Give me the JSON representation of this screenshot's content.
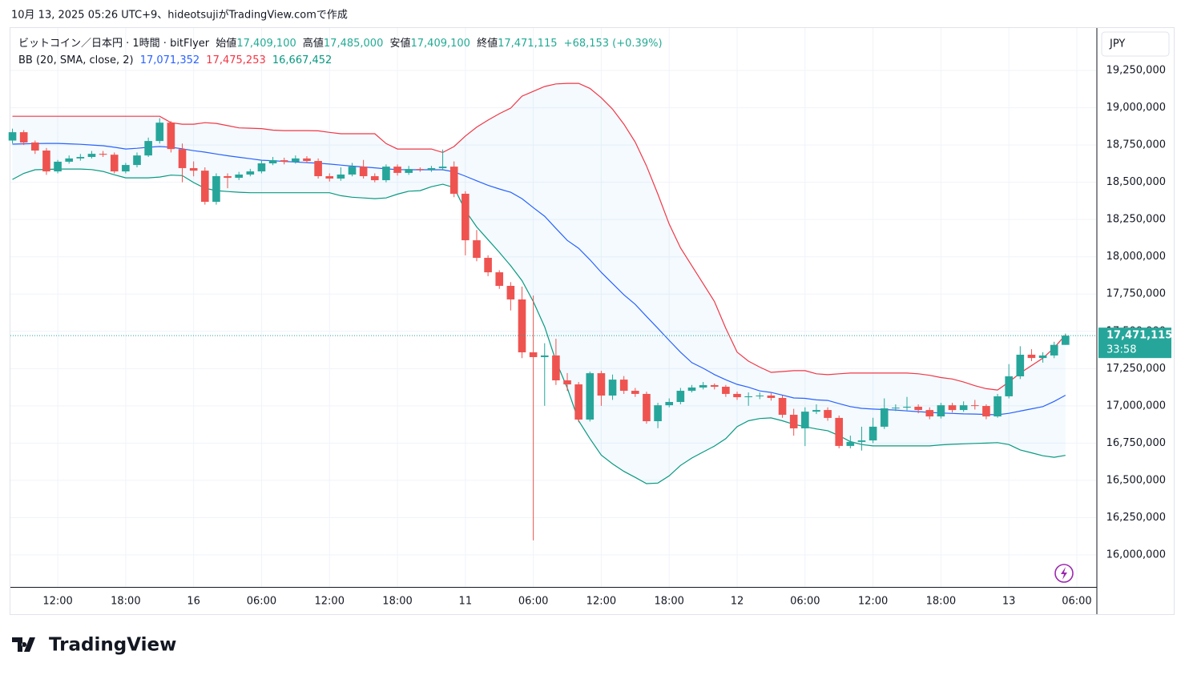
{
  "header": {
    "caption": "10月 13, 2025 05:26 UTC+9、hideotsujiがTradingView.comで作成",
    "brand": "TradingView",
    "currency": "JPY"
  },
  "legend": {
    "symbol": "ビットコイン／日本円 · 1時間 · bitFlyer",
    "open_label": "始値",
    "open": "17,409,100",
    "high_label": "高値",
    "high": "17,485,000",
    "low_label": "安値",
    "low": "17,409,100",
    "close_label": "終値",
    "close": "17,471,115",
    "change": "+68,153 (+0.39%)",
    "indicator": "BB (20, SMA, close, 2)",
    "basis": "17,071,352",
    "upper": "17,475,253",
    "lower": "16,667,452"
  },
  "chart_data": {
    "type": "candlestick",
    "up_color": "#26a69a",
    "down_color": "#ef5350",
    "band_fill": "#2196f3",
    "x": [
      0,
      1,
      2,
      3,
      4,
      5,
      6,
      7,
      8,
      9,
      10,
      11,
      12,
      13,
      14,
      15,
      16,
      17,
      18,
      19,
      20,
      21,
      22,
      23,
      24,
      25,
      26,
      27,
      28,
      29,
      30,
      31,
      32,
      33,
      34,
      35,
      36,
      37,
      38,
      39,
      40,
      41,
      42,
      43,
      44,
      45,
      46,
      47,
      48,
      49,
      50,
      51,
      52,
      53,
      54,
      55,
      56,
      57,
      58,
      59,
      60,
      61,
      62,
      63,
      64,
      65,
      66,
      67,
      68,
      69,
      70,
      71,
      72,
      73,
      74,
      75,
      76,
      77,
      78,
      79,
      80,
      81,
      82,
      83,
      84,
      85,
      86,
      87,
      88,
      89,
      90,
      91,
      92,
      93
    ],
    "open": [
      18780000,
      18836000,
      18767000,
      18713000,
      18573000,
      18638000,
      18660000,
      18670000,
      18691000,
      18685000,
      18573000,
      18616000,
      18680000,
      18777000,
      18900000,
      18723000,
      18595000,
      18578000,
      18369000,
      18541000,
      18530000,
      18552000,
      18573000,
      18627000,
      18648000,
      18638000,
      18660000,
      18643000,
      18541000,
      18525000,
      18552000,
      18605000,
      18541000,
      18514000,
      18605000,
      18563000,
      18589000,
      18584000,
      18595000,
      18605000,
      18423000,
      18111000,
      17993000,
      17896000,
      17805000,
      17714000,
      17359000,
      17327000,
      17338000,
      17171000,
      17144000,
      16908000,
      17219000,
      17069000,
      17176000,
      17101000,
      17080000,
      16897000,
      17004000,
      17026000,
      17101000,
      17123000,
      17139000,
      17128000,
      17080000,
      17058000,
      17064000,
      17069000,
      17053000,
      16940000,
      16849000,
      16961000,
      16972000,
      16919000,
      16731000,
      16758000,
      16768000,
      16860000,
      16983000,
      16988000,
      16994000,
      16972000,
      16929000,
      17004000,
      16972000,
      17004000,
      16999000,
      16929000,
      17064000,
      17198000,
      17343000,
      17321000,
      17338000,
      17409100
    ],
    "high": [
      18860000,
      18850000,
      18780000,
      18730000,
      18650000,
      18680000,
      18690000,
      18710000,
      18710000,
      18700000,
      18630000,
      18700000,
      18800000,
      18930000,
      18910000,
      18760000,
      18640000,
      18600000,
      18560000,
      18560000,
      18570000,
      18590000,
      18650000,
      18670000,
      18665000,
      18680000,
      18675000,
      18660000,
      18560000,
      18600000,
      18630000,
      18650000,
      18560000,
      18620000,
      18620000,
      18610000,
      18600000,
      18610000,
      18720000,
      18640000,
      18440000,
      18180000,
      18010000,
      17910000,
      17830000,
      17800000,
      17740000,
      17420000,
      17450000,
      17220000,
      17160000,
      17230000,
      17235000,
      17210000,
      17200000,
      17120000,
      17095000,
      17020000,
      17050000,
      17120000,
      17140000,
      17160000,
      17150000,
      17140000,
      17095000,
      17090000,
      17090000,
      17085000,
      17070000,
      16980000,
      16990000,
      17010000,
      16990000,
      16935000,
      16800000,
      16860000,
      16920000,
      17050000,
      17010000,
      17060000,
      17010000,
      16990000,
      17020000,
      17020000,
      17030000,
      17040000,
      17010000,
      17080000,
      17280000,
      17400000,
      17380000,
      17360000,
      17430000,
      17485000
    ],
    "low": [
      18760000,
      18750000,
      18690000,
      18550000,
      18560000,
      18625000,
      18645000,
      18660000,
      18670000,
      18560000,
      18560000,
      18600000,
      18670000,
      18760000,
      18700000,
      18500000,
      18540000,
      18350000,
      18350000,
      18460000,
      18515000,
      18540000,
      18560000,
      18615000,
      18620000,
      18625000,
      18630000,
      18525000,
      18505000,
      18510000,
      18540000,
      18525000,
      18500000,
      18500000,
      18545000,
      18550000,
      18570000,
      18570000,
      18580000,
      18400000,
      18010000,
      17970000,
      17870000,
      17785000,
      17640000,
      17320000,
      16097000,
      17000000,
      17140000,
      17100000,
      16890000,
      16895000,
      17000000,
      17040000,
      17080000,
      17060000,
      16880000,
      16850000,
      16990000,
      17010000,
      17090000,
      17110000,
      17110000,
      17060000,
      17040000,
      17000000,
      17045000,
      17035000,
      16920000,
      16800000,
      16730000,
      16945000,
      16900000,
      16715000,
      16715000,
      16700000,
      16750000,
      16845000,
      16965000,
      16970000,
      16950000,
      16910000,
      16915000,
      16955000,
      16960000,
      16975000,
      16910000,
      16920000,
      17050000,
      17180000,
      17300000,
      17290000,
      17320000,
      17409100
    ],
    "close": [
      18836000,
      18767000,
      18713000,
      18573000,
      18638000,
      18660000,
      18670000,
      18691000,
      18685000,
      18573000,
      18616000,
      18680000,
      18777000,
      18900000,
      18723000,
      18595000,
      18578000,
      18369000,
      18541000,
      18530000,
      18552000,
      18573000,
      18627000,
      18648000,
      18638000,
      18660000,
      18643000,
      18541000,
      18525000,
      18552000,
      18605000,
      18541000,
      18514000,
      18605000,
      18563000,
      18589000,
      18584000,
      18595000,
      18605000,
      18423000,
      18111000,
      17993000,
      17896000,
      17805000,
      17714000,
      17359000,
      17327000,
      17338000,
      17171000,
      17144000,
      16908000,
      17219000,
      17069000,
      17176000,
      17101000,
      17080000,
      16897000,
      17004000,
      17026000,
      17101000,
      17123000,
      17139000,
      17128000,
      17080000,
      17058000,
      17064000,
      17069000,
      17053000,
      16940000,
      16849000,
      16961000,
      16972000,
      16919000,
      16731000,
      16758000,
      16768000,
      16860000,
      16983000,
      16988000,
      16994000,
      16972000,
      16929000,
      17004000,
      16972000,
      17004000,
      16999000,
      16929000,
      17064000,
      17198000,
      17343000,
      17321000,
      17338000,
      17409100,
      17471115
    ],
    "series": [
      {
        "color": "#f23645",
        "values": [
          18943000,
          18943000,
          18943000,
          18943000,
          18943000,
          18943000,
          18943000,
          18943000,
          18943000,
          18943000,
          18943000,
          18943000,
          18943000,
          18943000,
          18900000,
          18890000,
          18890000,
          18900000,
          18895000,
          18880000,
          18865000,
          18863000,
          18860000,
          18850000,
          18847000,
          18847000,
          18847000,
          18845000,
          18835000,
          18826000,
          18826000,
          18826000,
          18826000,
          18760000,
          18723000,
          18723000,
          18723000,
          18723000,
          18700000,
          18740000,
          18810000,
          18870000,
          18917000,
          18960000,
          18998000,
          19078000,
          19110000,
          19143000,
          19160000,
          19164000,
          19164000,
          19130000,
          19067000,
          18990000,
          18890000,
          18770000,
          18610000,
          18420000,
          18220000,
          18060000,
          17940000,
          17820000,
          17700000,
          17520000,
          17360000,
          17300000,
          17260000,
          17225000,
          17230000,
          17236000,
          17236000,
          17215000,
          17209000,
          17215000,
          17220000,
          17220000,
          17220000,
          17220000,
          17220000,
          17220000,
          17215000,
          17205000,
          17190000,
          17180000,
          17160000,
          17135000,
          17115000,
          17106000,
          17160000,
          17220000,
          17270000,
          17320000,
          17390000,
          17475253
        ]
      },
      {
        "color": "#2962ff",
        "values": [
          18756000,
          18758000,
          18760000,
          18761000,
          18761000,
          18758000,
          18755000,
          18750000,
          18745000,
          18735000,
          18723000,
          18728000,
          18735000,
          18740000,
          18735000,
          18725000,
          18712000,
          18702000,
          18690000,
          18678000,
          18668000,
          18658000,
          18648000,
          18645000,
          18640000,
          18636000,
          18632000,
          18628000,
          18622000,
          18615000,
          18608000,
          18603000,
          18597000,
          18590000,
          18585000,
          18584000,
          18584000,
          18584000,
          18584000,
          18570000,
          18541000,
          18510000,
          18480000,
          18455000,
          18433000,
          18390000,
          18330000,
          18272000,
          18190000,
          18110000,
          18057000,
          17980000,
          17896000,
          17820000,
          17745000,
          17681000,
          17600000,
          17520000,
          17439000,
          17360000,
          17290000,
          17252000,
          17210000,
          17175000,
          17144000,
          17125000,
          17100000,
          17090000,
          17072000,
          17053000,
          17050000,
          17040000,
          17036000,
          17015000,
          16995000,
          16983000,
          16978000,
          16975000,
          16972000,
          16966000,
          16961000,
          16956000,
          16952000,
          16949000,
          16946000,
          16945000,
          16942000,
          16940000,
          16950000,
          16965000,
          16980000,
          16995000,
          17030000,
          17071352
        ]
      },
      {
        "color": "#089981",
        "values": [
          18519000,
          18560000,
          18584000,
          18586000,
          18589000,
          18589000,
          18589000,
          18585000,
          18573000,
          18550000,
          18530000,
          18530000,
          18530000,
          18535000,
          18548000,
          18545000,
          18498000,
          18460000,
          18444000,
          18438000,
          18433000,
          18430000,
          18430000,
          18430000,
          18430000,
          18430000,
          18430000,
          18430000,
          18430000,
          18410000,
          18400000,
          18395000,
          18390000,
          18395000,
          18420000,
          18440000,
          18444000,
          18470000,
          18487000,
          18465000,
          18310000,
          18200000,
          18115000,
          18030000,
          17940000,
          17840000,
          17700000,
          17530000,
          17300000,
          17120000,
          16900000,
          16780000,
          16670000,
          16610000,
          16560000,
          16520000,
          16478000,
          16482000,
          16530000,
          16600000,
          16650000,
          16690000,
          16730000,
          16780000,
          16860000,
          16900000,
          16915000,
          16919000,
          16900000,
          16876000,
          16860000,
          16845000,
          16833000,
          16800000,
          16760000,
          16740000,
          16731000,
          16731000,
          16731000,
          16731000,
          16731000,
          16731000,
          16738000,
          16742000,
          16745000,
          16748000,
          16750000,
          16753000,
          16740000,
          16704000,
          16685000,
          16665000,
          16655000,
          16667452
        ]
      }
    ],
    "xlim": [
      -0.18,
      95.7
    ],
    "xticks": [
      {
        "value": 4,
        "label": "12:00"
      },
      {
        "value": 10,
        "label": "18:00"
      },
      16,
      {
        "value": 22,
        "label": "06:00"
      },
      {
        "value": 28,
        "label": "12:00"
      },
      {
        "value": 34,
        "label": "18:00"
      },
      {
        "value": 40,
        "label": "11"
      },
      {
        "value": 46,
        "label": "06:00"
      },
      {
        "value": 52,
        "label": "12:00"
      },
      {
        "value": 58,
        "label": "18:00"
      },
      {
        "value": 64,
        "label": "12"
      },
      {
        "value": 70,
        "label": "06:00"
      },
      {
        "value": 76,
        "label": "12:00"
      },
      {
        "value": 82,
        "label": "18:00"
      },
      {
        "value": 88,
        "label": "13"
      },
      {
        "value": 94,
        "label": "06:00"
      }
    ],
    "ylim": [
      15785000,
      19535000
    ],
    "yticks": [
      {
        "value": 16000000,
        "label": "16,000,000"
      },
      {
        "value": 16250000,
        "label": "16,250,000"
      },
      {
        "value": 16500000,
        "label": "16,500,000"
      },
      {
        "value": 16750000,
        "label": "16,750,000"
      },
      {
        "value": 17000000,
        "label": "17,000,000"
      },
      {
        "value": 17250000,
        "label": "17,250,000"
      },
      {
        "value": 17500000,
        "label": "17,500,000"
      },
      {
        "value": 17750000,
        "label": "17,750,000"
      },
      {
        "value": 18000000,
        "label": "18,000,000"
      },
      {
        "value": 18250000,
        "label": "18,250,000"
      },
      {
        "value": 18500000,
        "label": "18,500,000"
      },
      {
        "value": 18750000,
        "label": "18,750,000"
      },
      {
        "value": 19000000,
        "label": "19,000,000"
      },
      {
        "value": 19250000,
        "label": "19,250,000"
      }
    ],
    "grid": true,
    "last_price_label": "17,471,115",
    "countdown": "33:58"
  }
}
